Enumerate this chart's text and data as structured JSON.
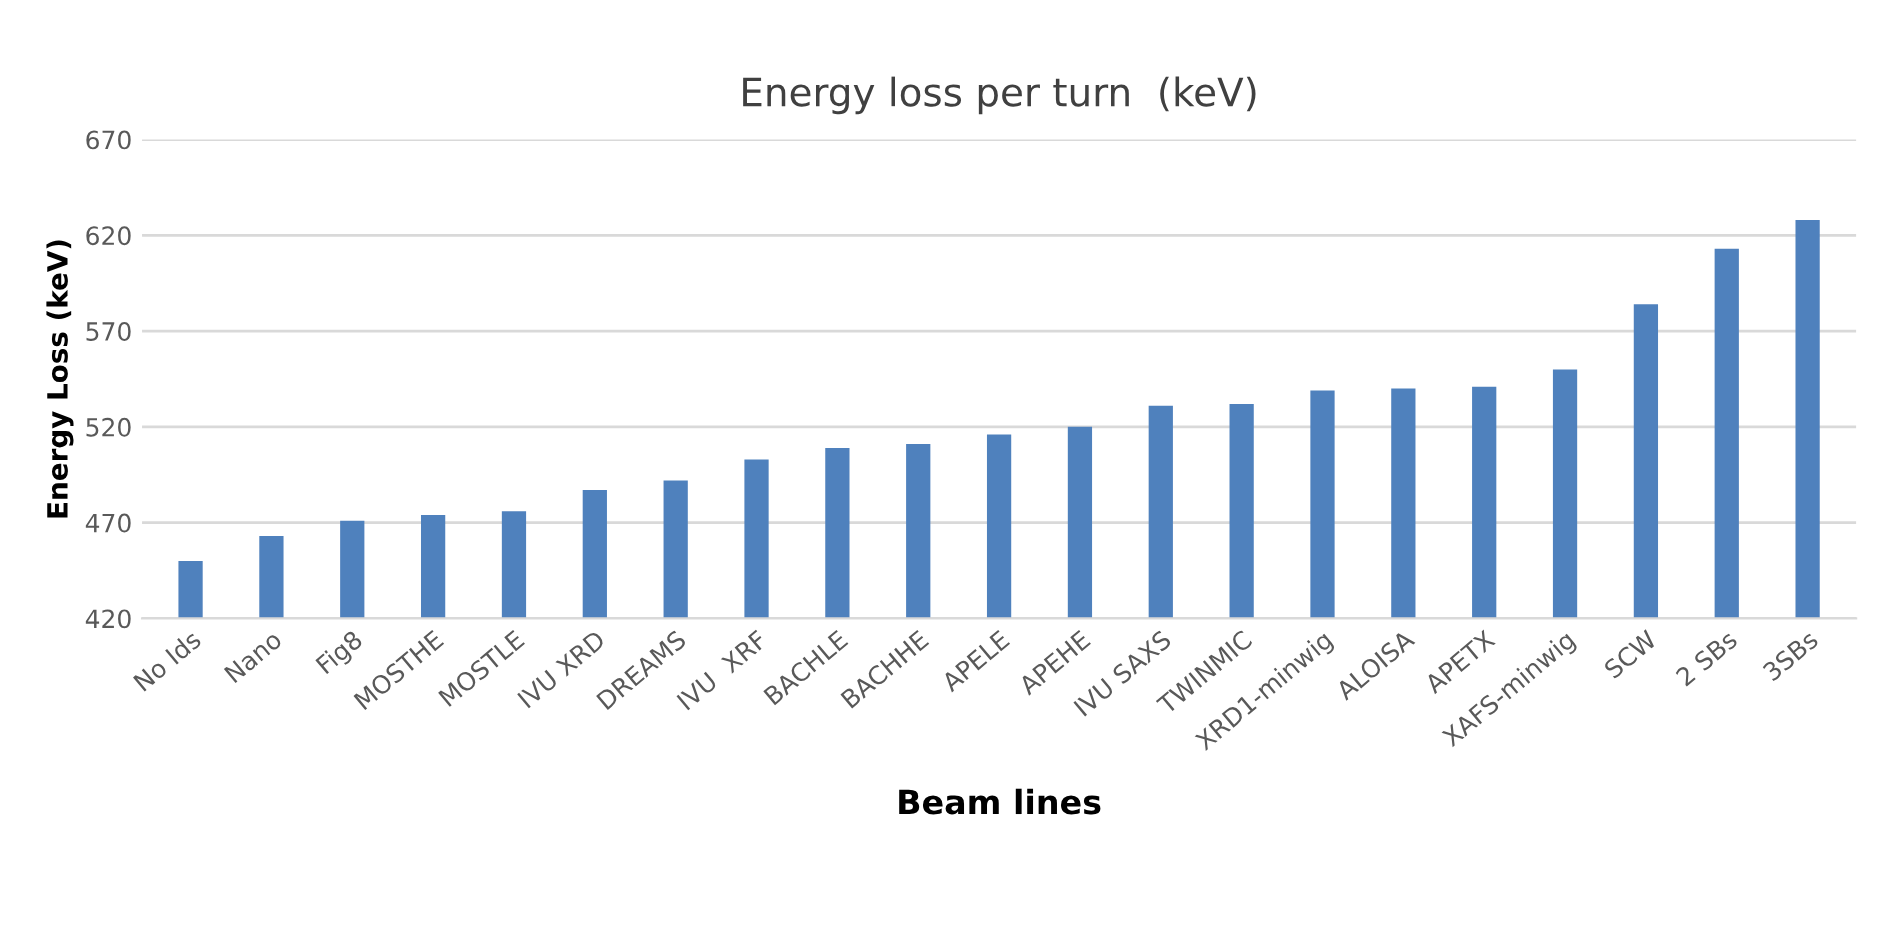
{
  "chart_data": {
    "type": "bar",
    "title": "Energy loss per turn  (keV)",
    "xlabel": "Beam lines",
    "ylabel": "Energy Loss (keV)",
    "categories": [
      "No Ids",
      "Nano",
      "Fig8",
      "MOSTHE",
      "MOSTLE",
      "IVU XRD",
      "DREAMS",
      "IVU  XRF",
      "BACHLE",
      "BACHHE",
      "APELE",
      "APEHE",
      "IVU SAXS",
      "TWINMIC",
      "XRD1-minwig",
      "ALOISA",
      "APETX",
      "XAFS-minwig",
      "SCW",
      "2 SBs",
      "3SBs"
    ],
    "values": [
      450,
      463,
      471,
      474,
      476,
      487,
      492,
      503,
      509,
      511,
      516,
      520,
      531,
      532,
      539,
      540,
      541,
      550,
      584,
      613,
      628
    ],
    "color": "#4f81bd",
    "ylim": [
      420,
      670
    ],
    "yticks": [
      420,
      470,
      520,
      570,
      620,
      670
    ],
    "grid": "y"
  }
}
